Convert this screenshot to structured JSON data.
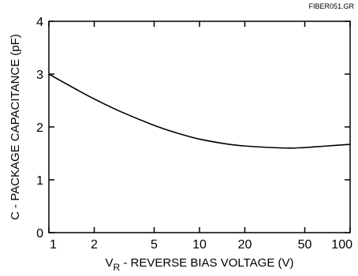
{
  "figure_id": "FIBER051.GR",
  "colors": {
    "axis": "#000000",
    "curve": "#000000",
    "background": "#ffffff"
  },
  "chart_data": {
    "type": "line",
    "xlabel_main": "V",
    "xlabel_sub": "R",
    "xlabel_rest": " - REVERSE BIAS VOLTAGE (V)",
    "ylabel": "C - PACKAGE CAPACITANCE (pF)",
    "x_scale": "log",
    "xlim": [
      1,
      100
    ],
    "ylim": [
      0,
      4
    ],
    "x_ticks": [
      1,
      2,
      5,
      10,
      20,
      50,
      100
    ],
    "x_tick_labels": [
      "1",
      "2",
      "5",
      "10",
      "20",
      "50",
      "100"
    ],
    "y_ticks": [
      0,
      1,
      2,
      3,
      4
    ],
    "y_tick_labels": [
      "0",
      "1",
      "2",
      "3",
      "4"
    ],
    "grid": false,
    "series": [
      {
        "x": [
          1,
          1.5,
          2,
          3,
          5,
          7,
          10,
          15,
          20,
          30,
          40,
          50,
          70,
          100
        ],
        "y": [
          3.0,
          2.72,
          2.53,
          2.29,
          2.03,
          1.89,
          1.77,
          1.68,
          1.64,
          1.61,
          1.6,
          1.61,
          1.64,
          1.67
        ]
      }
    ]
  }
}
